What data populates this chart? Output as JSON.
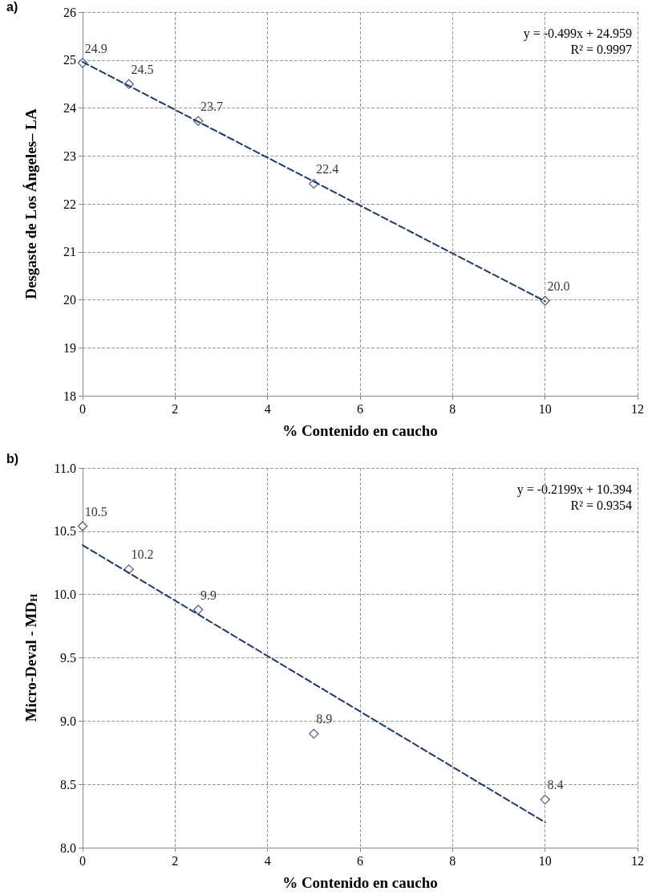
{
  "chart_data": [
    {
      "type": "scatter",
      "title": "a)",
      "xlabel": "% Contenido en caucho",
      "ylabel": "Desgaste de Los Ángeles– LA",
      "xlim": [
        0,
        12
      ],
      "xticks": [
        0,
        2,
        4,
        6,
        8,
        10,
        12
      ],
      "ylim": [
        18,
        26
      ],
      "yticks": [
        18,
        19,
        20,
        21,
        22,
        23,
        24,
        25,
        26
      ],
      "grid": true,
      "annotations": [
        "y = -0.499x + 24.959",
        "R² = 0.9997"
      ],
      "series": [
        {
          "color": "#1f3864",
          "marker": "diamond",
          "x": [
            0,
            1,
            2.5,
            5,
            10
          ],
          "values": [
            24.94,
            24.5,
            23.73,
            22.42,
            19.98
          ],
          "value_labels": [
            "24.9",
            "24.5",
            "23.7",
            "22.4",
            "20.0"
          ]
        },
        {
          "type": "line",
          "color": "#1f3864",
          "marker": "none",
          "line_style": "dashed",
          "x": [
            0,
            10
          ],
          "values": [
            24.96,
            19.97
          ]
        }
      ]
    },
    {
      "type": "scatter",
      "title": "b)",
      "xlabel": "% Contenido en caucho",
      "ylabel": "Micro-Deval - MD$_{H}$",
      "xlim": [
        0,
        12
      ],
      "xticks": [
        0,
        2,
        4,
        6,
        8,
        10,
        12
      ],
      "ylim": [
        8,
        11
      ],
      "yticks": [
        {
          "value": 8,
          "label": "8.0"
        },
        {
          "value": 8.5,
          "label": "8.5"
        },
        {
          "value": 9,
          "label": "9.0"
        },
        {
          "value": 9.5,
          "label": "9.5"
        },
        {
          "value": 10,
          "label": "10.0"
        },
        {
          "value": 10.5,
          "label": "10.5"
        },
        {
          "value": 11,
          "label": "11.0"
        }
      ],
      "grid": true,
      "annotations": [
        "y = -0.2199x + 10.394",
        "R² = 0.9354"
      ],
      "series": [
        {
          "color": "#1f3864",
          "marker": "diamond",
          "x": [
            0,
            1,
            2.5,
            5,
            10
          ],
          "values": [
            10.54,
            10.2,
            9.88,
            8.9,
            8.38
          ],
          "value_labels": [
            "10.5",
            "10.2",
            "9.9",
            "8.9",
            "8.4"
          ]
        },
        {
          "type": "line",
          "color": "#1f3864",
          "marker": "none",
          "line_style": "dashed",
          "x": [
            0,
            10
          ],
          "values": [
            10.39,
            8.2
          ]
        }
      ]
    }
  ]
}
